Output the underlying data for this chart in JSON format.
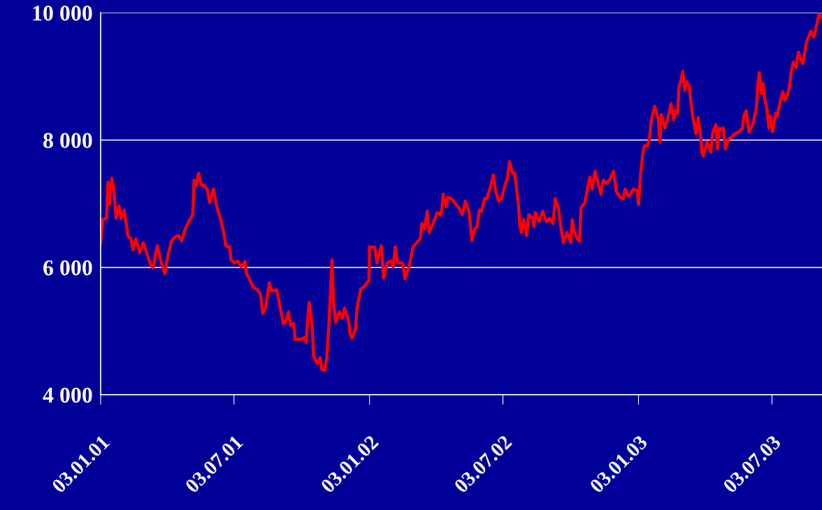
{
  "chart_data": {
    "type": "line",
    "x": [
      "2001-01-03",
      "2001-01-06",
      "2001-01-11",
      "2001-01-13",
      "2001-01-15",
      "2001-01-18",
      "2001-01-21",
      "2001-01-24",
      "2001-01-28",
      "2001-01-31",
      "2001-02-04",
      "2001-02-09",
      "2001-02-13",
      "2001-02-16",
      "2001-02-20",
      "2001-02-25",
      "2001-03-02",
      "2001-03-07",
      "2001-03-11",
      "2001-03-15",
      "2001-03-21",
      "2001-03-26",
      "2001-03-31",
      "2001-04-04",
      "2001-04-09",
      "2001-04-14",
      "2001-04-19",
      "2001-04-23",
      "2001-04-28",
      "2001-05-03",
      "2001-05-08",
      "2001-05-10",
      "2001-05-13",
      "2001-05-16",
      "2001-05-20",
      "2001-05-24",
      "2001-05-28",
      "2001-05-31",
      "2001-06-05",
      "2001-06-10",
      "2001-06-15",
      "2001-06-19",
      "2001-06-22",
      "2001-06-27",
      "2001-06-29",
      "2001-07-04",
      "2001-07-08",
      "2001-07-13",
      "2001-07-18",
      "2001-07-20",
      "2001-07-24",
      "2001-07-29",
      "2001-08-03",
      "2001-08-08",
      "2001-08-11",
      "2001-08-15",
      "2001-08-20",
      "2001-08-23",
      "2001-08-30",
      "2001-09-03",
      "2001-09-08",
      "2001-09-11",
      "2001-09-15",
      "2001-09-18",
      "2001-09-22",
      "2001-09-24",
      "2001-10-02",
      "2001-10-07",
      "2001-10-09",
      "2001-10-11",
      "2001-10-13",
      "2001-10-17",
      "2001-10-19",
      "2001-10-24",
      "2001-10-28",
      "2001-10-30",
      "2001-11-03",
      "2001-11-06",
      "2001-11-09",
      "2001-11-13",
      "2001-11-15",
      "2001-11-18",
      "2001-11-23",
      "2001-11-27",
      "2001-11-30",
      "2001-12-06",
      "2001-12-07",
      "2001-12-10",
      "2001-12-15",
      "2001-12-17",
      "2001-12-22",
      "2001-12-26",
      "2002-01-02",
      "2002-01-03",
      "2002-01-10",
      "2002-01-13",
      "2002-01-19",
      "2002-01-22",
      "2002-01-27",
      "2002-02-01",
      "2002-02-04",
      "2002-02-07",
      "2002-02-10",
      "2002-02-17",
      "2002-02-20",
      "2002-02-26",
      "2002-03-03",
      "2002-03-08",
      "2002-03-13",
      "2002-03-15",
      "2002-03-19",
      "2002-03-22",
      "2002-03-25",
      "2002-03-30",
      "2002-04-02",
      "2002-04-05",
      "2002-04-10",
      "2002-04-13",
      "2002-04-17",
      "2002-04-19",
      "2002-04-24",
      "2002-04-29",
      "2002-05-04",
      "2002-05-09",
      "2002-05-13",
      "2002-05-18",
      "2002-05-22",
      "2002-05-26",
      "2002-05-29",
      "2002-06-01",
      "2002-06-04",
      "2002-06-08",
      "2002-06-11",
      "2002-06-16",
      "2002-06-20",
      "2002-06-23",
      "2002-06-27",
      "2002-07-01",
      "2002-07-05",
      "2002-07-09",
      "2002-07-12",
      "2002-07-16",
      "2002-07-19",
      "2002-07-24",
      "2002-07-26",
      "2002-07-28",
      "2002-07-31",
      "2002-08-04",
      "2002-08-07",
      "2002-08-12",
      "2002-08-14",
      "2002-08-16",
      "2002-08-21",
      "2002-08-26",
      "2002-08-31",
      "2002-09-04",
      "2002-09-09",
      "2002-09-12",
      "2002-09-16",
      "2002-09-20",
      "2002-09-23",
      "2002-09-28",
      "2002-10-03",
      "2002-10-05",
      "2002-10-08",
      "2002-10-12",
      "2002-10-15",
      "2002-10-17",
      "2002-10-22",
      "2002-10-25",
      "2002-10-29",
      "2002-11-01",
      "2002-11-05",
      "2002-11-10",
      "2002-11-13",
      "2002-11-16",
      "2002-11-21",
      "2002-11-26",
      "2002-11-30",
      "2002-12-04",
      "2002-12-09",
      "2002-12-13",
      "2002-12-16",
      "2002-12-20",
      "2002-12-23",
      "2002-12-27",
      "2003-01-01",
      "2003-01-03",
      "2003-01-06",
      "2003-01-09",
      "2003-01-11",
      "2003-01-15",
      "2003-01-18",
      "2003-01-20",
      "2003-01-25",
      "2003-01-30",
      "2003-02-01",
      "2003-02-03",
      "2003-02-08",
      "2003-02-13",
      "2003-02-16",
      "2003-02-20",
      "2003-02-22",
      "2003-02-25",
      "2003-02-27",
      "2003-03-02",
      "2003-03-04",
      "2003-03-07",
      "2003-03-09",
      "2003-03-13",
      "2003-03-15",
      "2003-03-18",
      "2003-03-22",
      "2003-03-25",
      "2003-03-28",
      "2003-03-30",
      "2003-04-01",
      "2003-04-06",
      "2003-04-11",
      "2003-04-14",
      "2003-04-18",
      "2003-04-20",
      "2003-04-23",
      "2003-04-25",
      "2003-04-28",
      "2003-05-01",
      "2003-05-05",
      "2003-05-09",
      "2003-05-14",
      "2003-05-19",
      "2003-05-24",
      "2003-05-26",
      "2003-05-29",
      "2003-06-02",
      "2003-06-07",
      "2003-06-12",
      "2003-06-14",
      "2003-06-16",
      "2003-06-19",
      "2003-06-21",
      "2003-06-23",
      "2003-06-26",
      "2003-06-29",
      "2003-07-01",
      "2003-07-04",
      "2003-07-06",
      "2003-07-08",
      "2003-07-10",
      "2003-07-15",
      "2003-07-18",
      "2003-07-20",
      "2003-07-23",
      "2003-07-25",
      "2003-07-27",
      "2003-07-29",
      "2003-08-01",
      "2003-08-05",
      "2003-08-08",
      "2003-08-11",
      "2003-08-14",
      "2003-08-19",
      "2003-08-25",
      "2003-08-29",
      "2003-09-02",
      "2003-09-05",
      "2003-09-09"
    ],
    "series": [
      {
        "color": "#ff0000",
        "values": [
          6390,
          6750,
          6770,
          7340,
          6990,
          7400,
          7230,
          6770,
          6960,
          6770,
          6900,
          6500,
          6450,
          6280,
          6450,
          6230,
          6390,
          6210,
          6070,
          5990,
          6340,
          6090,
          5900,
          6170,
          6410,
          6480,
          6500,
          6420,
          6610,
          6720,
          6830,
          7370,
          7290,
          7480,
          7290,
          7290,
          7210,
          7020,
          7230,
          6940,
          6750,
          6550,
          6340,
          6320,
          6120,
          6070,
          6100,
          6010,
          6090,
          5900,
          5820,
          5690,
          5660,
          5580,
          5280,
          5360,
          5760,
          5630,
          5650,
          5410,
          5120,
          5140,
          5300,
          5090,
          5120,
          4870,
          4870,
          4900,
          4820,
          5160,
          5450,
          5090,
          4600,
          4490,
          4580,
          4400,
          4380,
          4580,
          5140,
          6120,
          5470,
          5140,
          5300,
          5200,
          5360,
          5140,
          4980,
          4890,
          5030,
          5360,
          5660,
          5690,
          5790,
          6320,
          6320,
          6070,
          6340,
          5830,
          6070,
          6100,
          6010,
          6320,
          6070,
          6070,
          5820,
          6030,
          6320,
          6390,
          6450,
          6690,
          6610,
          6880,
          6550,
          6690,
          6770,
          6860,
          6820,
          7150,
          6950,
          7100,
          7080,
          7010,
          6940,
          6830,
          7040,
          6880,
          6420,
          6610,
          6640,
          6900,
          6880,
          7080,
          7080,
          7260,
          7450,
          7210,
          7040,
          7080,
          7260,
          7400,
          7660,
          7480,
          7480,
          6990,
          6660,
          6550,
          6750,
          6500,
          6830,
          6770,
          6640,
          6860,
          6720,
          6880,
          6720,
          6770,
          6690,
          7080,
          6940,
          6610,
          6390,
          6550,
          6390,
          6750,
          6550,
          6450,
          6410,
          6940,
          7010,
          7190,
          7420,
          7230,
          7510,
          7290,
          7150,
          7370,
          7320,
          7400,
          7510,
          7190,
          7100,
          7080,
          7230,
          7120,
          7150,
          7230,
          7210,
          6990,
          7480,
          7810,
          7910,
          7910,
          8020,
          8290,
          8530,
          8320,
          7970,
          8400,
          8190,
          8400,
          8570,
          8320,
          8460,
          8420,
          8840,
          8950,
          9080,
          8780,
          8920,
          8840,
          8600,
          8350,
          8100,
          8350,
          8080,
          7810,
          7750,
          7970,
          7810,
          8130,
          8240,
          7860,
          8190,
          8160,
          8190,
          7860,
          8020,
          8040,
          8100,
          8130,
          8190,
          8380,
          8460,
          8130,
          8240,
          8510,
          8890,
          9060,
          8730,
          8890,
          8670,
          8510,
          8190,
          8380,
          8130,
          8290,
          8420,
          8370,
          8640,
          8760,
          8620,
          8670,
          8750,
          8840,
          9060,
          9220,
          9140,
          9380,
          9270,
          9200,
          9540,
          9710,
          9620,
          9820,
          9980,
          9920
        ]
      }
    ],
    "xlim": [
      "2001-01-03",
      "2003-09-09"
    ],
    "xticks": [
      {
        "value": "2001-01-03",
        "label": "03.01.01"
      },
      {
        "value": "2001-07-03",
        "label": "03.07.01"
      },
      {
        "value": "2002-01-03",
        "label": "03.01.02"
      },
      {
        "value": "2002-07-03",
        "label": "03.07.02"
      },
      {
        "value": "2003-01-03",
        "label": "03.01.03"
      },
      {
        "value": "2003-07-03",
        "label": "03.07.03"
      }
    ],
    "ylim": [
      4000,
      10000
    ],
    "yticks": [
      {
        "value": 4000,
        "label": "4 000"
      },
      {
        "value": 6000,
        "label": "6 000"
      },
      {
        "value": 8000,
        "label": "8 000"
      },
      {
        "value": 10000,
        "label": "10 000"
      }
    ],
    "grid": "y",
    "marker": "none",
    "line_style": "solid"
  }
}
